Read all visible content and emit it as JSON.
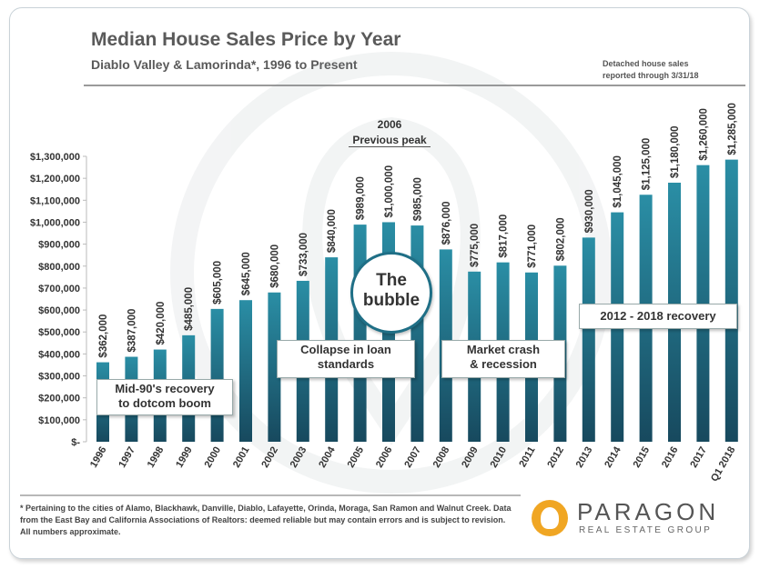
{
  "header": {
    "title": "Median House Sales Price by Year",
    "subtitle": "Diablo Valley & Lamorinda*, 1996 to Present",
    "note_line1": "Detached house sales",
    "note_line2": "reported through  3/31/18"
  },
  "annotations": {
    "peak_year": "2006",
    "peak_label": "Previous peak",
    "bubble_line1": "The",
    "bubble_line2": "bubble",
    "mid90s_line1": "Mid-90's recovery",
    "mid90s_line2": "to dotcom boom",
    "collapse_line1": "Collapse in loan",
    "collapse_line2": "standards",
    "crash_line1": "Market crash",
    "crash_line2": "& recession",
    "recovery": "2012 - 2018 recovery"
  },
  "footnote": "* Pertaining to the cities of Alamo, Blackhawk, Danville, Diablo, Lafayette, Orinda, Moraga, San Ramon and Walnut Creek. Data from the East Bay and California Associations of Realtors: deemed reliable but may contain errors and is subject to revision. All numbers approximate.",
  "logo": {
    "name": "PARAGON",
    "tagline": "REAL ESTATE GROUP"
  },
  "colors": {
    "bar_top": "#2a8ea5",
    "bar_bottom": "#17495e"
  },
  "chart_data": {
    "type": "bar",
    "title": "Median House Sales Price by Year",
    "categories": [
      "1996",
      "1997",
      "1998",
      "1999",
      "2000",
      "2001",
      "2002",
      "2003",
      "2004",
      "2005",
      "2006",
      "2007",
      "2008",
      "2009",
      "2010",
      "2011",
      "2012",
      "2013",
      "2014",
      "2015",
      "2016",
      "2017",
      "Q1 2018"
    ],
    "values": [
      362000,
      387000,
      420000,
      485000,
      605000,
      645000,
      680000,
      733000,
      840000,
      989000,
      1000000,
      985000,
      876000,
      775000,
      817000,
      771000,
      802000,
      930000,
      1045000,
      1125000,
      1180000,
      1260000,
      1285000
    ],
    "value_labels": [
      "$362,000",
      "$387,000",
      "$420,000",
      "$485,000",
      "$605,000",
      "$645,000",
      "$680,000",
      "$733,000",
      "$840,000",
      "$989,000",
      "$1,000,000",
      "$985,000",
      "$876,000",
      "$775,000",
      "$817,000",
      "$771,000",
      "$802,000",
      "$930,000",
      "$1,045,000",
      "$1,125,000",
      "$1,180,000",
      "$1,260,000",
      "$1,285,000"
    ],
    "ylim": [
      0,
      1300000
    ],
    "yticks": [
      0,
      100000,
      200000,
      300000,
      400000,
      500000,
      600000,
      700000,
      800000,
      900000,
      1000000,
      1100000,
      1200000,
      1300000
    ],
    "ytick_labels": [
      "$-",
      "$100,000",
      "$200,000",
      "$300,000",
      "$400,000",
      "$500,000",
      "$600,000",
      "$700,000",
      "$800,000",
      "$900,000",
      "$1,000,000",
      "$1,100,000",
      "$1,200,000",
      "$1,300,000"
    ],
    "xlabel": "",
    "ylabel": ""
  }
}
